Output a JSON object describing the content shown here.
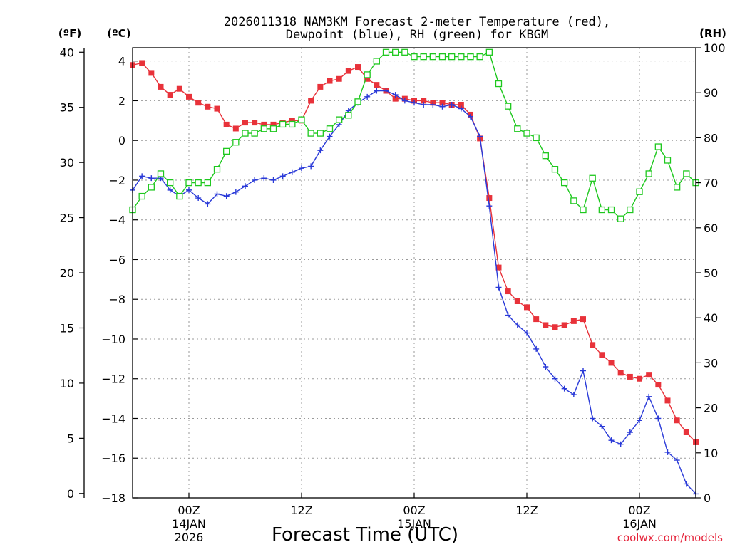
{
  "chart_data": {
    "type": "line",
    "title": "2026011318 NAM3KM Forecast 2-meter Temperature (red),",
    "subtitle": "Dewpoint (blue), RH (green) for KBGM",
    "unit_f": "(ºF)",
    "unit_c": "(ºC)",
    "unit_rh": "(RH)",
    "xlabel": "Forecast Time (UTC)",
    "watermark": "coolwx.com/models",
    "x_ticks": [
      {
        "hour": 6,
        "label": "00Z",
        "sub1": "14JAN",
        "sub2": "2026"
      },
      {
        "hour": 18,
        "label": "12Z",
        "sub1": "",
        "sub2": ""
      },
      {
        "hour": 30,
        "label": "00Z",
        "sub1": "15JAN",
        "sub2": ""
      },
      {
        "hour": 42,
        "label": "12Z",
        "sub1": "",
        "sub2": ""
      },
      {
        "hour": 54,
        "label": "00Z",
        "sub1": "16JAN",
        "sub2": ""
      }
    ],
    "xlim": [
      0,
      60
    ],
    "ylim_c": [
      -18,
      4.67
    ],
    "ylim_rh": [
      0,
      100
    ],
    "y_ticks_c": [
      4,
      2,
      0,
      -2,
      -4,
      -6,
      -8,
      -10,
      -12,
      -14,
      -16,
      -18
    ],
    "y_ticks_f": [
      40,
      35,
      30,
      25,
      20,
      15,
      10,
      5,
      0
    ],
    "y_ticks_rh": [
      100,
      90,
      80,
      70,
      60,
      50,
      40,
      30,
      20,
      10,
      0
    ],
    "x_hours": [
      0,
      1,
      2,
      3,
      4,
      5,
      6,
      7,
      8,
      9,
      10,
      11,
      12,
      13,
      14,
      15,
      16,
      17,
      18,
      19,
      20,
      21,
      22,
      23,
      24,
      25,
      26,
      27,
      28,
      29,
      30,
      31,
      32,
      33,
      34,
      35,
      36,
      37,
      38,
      39,
      40,
      41,
      42,
      43,
      44,
      45,
      46,
      47,
      48,
      49,
      50,
      51,
      52,
      53,
      54,
      55,
      56,
      57,
      58,
      59,
      60
    ],
    "series": [
      {
        "name": "Temperature",
        "color": "#e8323a",
        "marker": "filled-square",
        "values": [
          3.8,
          3.9,
          3.4,
          2.7,
          2.3,
          2.6,
          2.2,
          1.9,
          1.7,
          1.6,
          0.8,
          0.6,
          0.9,
          0.9,
          0.8,
          0.8,
          0.9,
          1.0,
          1.0,
          2.0,
          2.7,
          3.0,
          3.1,
          3.5,
          3.7,
          3.1,
          2.8,
          2.5,
          2.1,
          2.1,
          2.0,
          2.0,
          1.9,
          1.9,
          1.8,
          1.8,
          1.3,
          0.1,
          -2.9,
          -6.4,
          -7.6,
          -8.1,
          -8.4,
          -9.0,
          -9.3,
          -9.4,
          -9.3,
          -9.1,
          -9.0,
          -10.3,
          -10.8,
          -11.2,
          -11.7,
          -11.9,
          -12.0,
          -11.8,
          -12.3,
          -13.1,
          -14.1,
          -14.7,
          -15.2
        ]
      },
      {
        "name": "Dewpoint",
        "color": "#2a3ad8",
        "marker": "plus",
        "values": [
          -2.5,
          -1.8,
          -1.9,
          -1.9,
          -2.5,
          -2.8,
          -2.5,
          -2.9,
          -3.2,
          -2.7,
          -2.8,
          -2.6,
          -2.3,
          -2.0,
          -1.9,
          -2.0,
          -1.8,
          -1.6,
          -1.4,
          -1.3,
          -0.5,
          0.2,
          0.8,
          1.5,
          1.9,
          2.2,
          2.5,
          2.5,
          2.3,
          2.0,
          1.9,
          1.8,
          1.8,
          1.7,
          1.8,
          1.6,
          1.2,
          0.2,
          -3.3,
          -7.4,
          -8.8,
          -9.3,
          -9.7,
          -10.5,
          -11.4,
          -12.0,
          -12.5,
          -12.8,
          -11.6,
          -14.0,
          -14.4,
          -15.1,
          -15.3,
          -14.7,
          -14.1,
          -12.9,
          -14.0,
          -15.7,
          -16.1,
          -17.3,
          -17.8
        ]
      },
      {
        "name": "RH",
        "color": "#1ec81e",
        "marker": "open-square",
        "values": [
          64,
          67,
          69,
          72,
          70,
          67,
          70,
          70,
          70,
          73,
          77,
          79,
          81,
          81,
          82,
          82,
          83,
          83,
          84,
          81,
          81,
          82,
          84,
          85,
          88,
          94,
          97,
          99,
          99,
          99,
          98,
          98,
          98,
          98,
          98,
          98,
          98,
          98,
          99,
          92,
          87,
          82,
          81,
          80,
          76,
          73,
          70,
          66,
          64,
          71,
          64,
          64,
          62,
          64,
          68,
          72,
          78,
          75,
          69,
          72,
          70
        ]
      }
    ]
  }
}
